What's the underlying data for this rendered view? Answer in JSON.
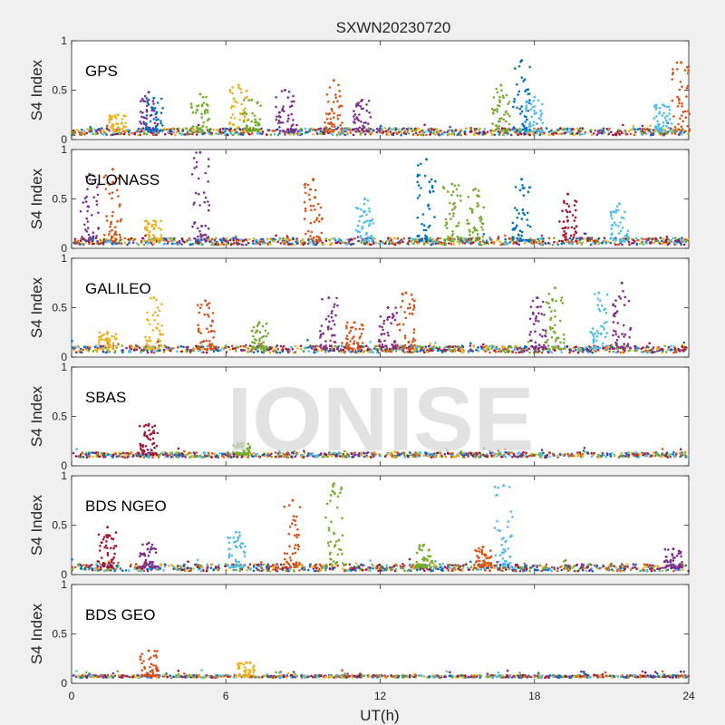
{
  "figure": {
    "title": "SXWN20230720",
    "watermark": "IONISE",
    "xlabel": "UT(h)",
    "ylabel": "S4 Index",
    "background": "#f0f0f0",
    "axes_background": "#ffffff"
  },
  "chart_data": [
    {
      "type": "scatter",
      "label": "GPS",
      "xlim": [
        0,
        24
      ],
      "ylim": [
        0,
        1
      ],
      "xticks": [
        "0",
        "6",
        "12",
        "18",
        "24"
      ],
      "yticks": [
        "0",
        "0.5",
        "1"
      ],
      "baseline": 0.08,
      "noise": 0.035,
      "bursts": [
        {
          "t": 1.8,
          "peak": 0.25,
          "color": "#EDB120"
        },
        {
          "t": 3.0,
          "peak": 0.48,
          "color": "#7E2F8E"
        },
        {
          "t": 3.2,
          "peak": 0.42,
          "color": "#0072BD"
        },
        {
          "t": 5.0,
          "peak": 0.46,
          "color": "#77AC30"
        },
        {
          "t": 6.5,
          "peak": 0.55,
          "color": "#EDB120"
        },
        {
          "t": 7.0,
          "peak": 0.4,
          "color": "#77AC30"
        },
        {
          "t": 8.3,
          "peak": 0.5,
          "color": "#7E2F8E"
        },
        {
          "t": 10.2,
          "peak": 0.6,
          "color": "#D95319"
        },
        {
          "t": 11.3,
          "peak": 0.4,
          "color": "#7E2F8E"
        },
        {
          "t": 16.7,
          "peak": 0.55,
          "color": "#77AC30"
        },
        {
          "t": 17.5,
          "peak": 0.8,
          "color": "#0072BD"
        },
        {
          "t": 18.0,
          "peak": 0.43,
          "color": "#4DBEEE"
        },
        {
          "t": 23.0,
          "peak": 0.35,
          "color": "#4DBEEE"
        },
        {
          "t": 23.7,
          "peak": 0.78,
          "color": "#D95319"
        }
      ]
    },
    {
      "type": "scatter",
      "label": "GLONASS",
      "xlim": [
        0,
        24
      ],
      "ylim": [
        0,
        1
      ],
      "xticks": [
        "0",
        "6",
        "12",
        "18",
        "24"
      ],
      "yticks": [
        "0",
        "0.5",
        "1"
      ],
      "baseline": 0.07,
      "noise": 0.035,
      "bursts": [
        {
          "t": 0.7,
          "peak": 0.75,
          "color": "#7E2F8E"
        },
        {
          "t": 1.6,
          "peak": 0.8,
          "color": "#D95319"
        },
        {
          "t": 3.2,
          "peak": 0.28,
          "color": "#EDB120"
        },
        {
          "t": 5.0,
          "peak": 0.97,
          "color": "#7E2F8E"
        },
        {
          "t": 9.4,
          "peak": 0.7,
          "color": "#D95319"
        },
        {
          "t": 11.4,
          "peak": 0.5,
          "color": "#4DBEEE"
        },
        {
          "t": 13.8,
          "peak": 0.9,
          "color": "#0072BD"
        },
        {
          "t": 14.8,
          "peak": 0.65,
          "color": "#77AC30"
        },
        {
          "t": 15.7,
          "peak": 0.6,
          "color": "#77AC30"
        },
        {
          "t": 17.5,
          "peak": 0.7,
          "color": "#0072BD"
        },
        {
          "t": 19.3,
          "peak": 0.55,
          "color": "#A2142F"
        },
        {
          "t": 21.3,
          "peak": 0.45,
          "color": "#4DBEEE"
        }
      ]
    },
    {
      "type": "scatter",
      "label": "GALILEO",
      "xlim": [
        0,
        24
      ],
      "ylim": [
        0,
        1
      ],
      "xticks": [
        "0",
        "6",
        "12",
        "18",
        "24"
      ],
      "yticks": [
        "0",
        "0.5",
        "1"
      ],
      "baseline": 0.08,
      "noise": 0.035,
      "bursts": [
        {
          "t": 1.4,
          "peak": 0.25,
          "color": "#EDB120"
        },
        {
          "t": 3.2,
          "peak": 0.6,
          "color": "#EDB120"
        },
        {
          "t": 5.2,
          "peak": 0.57,
          "color": "#D95319"
        },
        {
          "t": 7.3,
          "peak": 0.35,
          "color": "#77AC30"
        },
        {
          "t": 10.0,
          "peak": 0.6,
          "color": "#7E2F8E"
        },
        {
          "t": 11.0,
          "peak": 0.35,
          "color": "#D95319"
        },
        {
          "t": 12.3,
          "peak": 0.5,
          "color": "#7E2F8E"
        },
        {
          "t": 13.0,
          "peak": 0.65,
          "color": "#D95319"
        },
        {
          "t": 18.1,
          "peak": 0.6,
          "color": "#7E2F8E"
        },
        {
          "t": 18.8,
          "peak": 0.7,
          "color": "#77AC30"
        },
        {
          "t": 20.5,
          "peak": 0.65,
          "color": "#4DBEEE"
        },
        {
          "t": 21.4,
          "peak": 0.75,
          "color": "#7E2F8E"
        }
      ]
    },
    {
      "type": "scatter",
      "label": "SBAS",
      "xlim": [
        0,
        24
      ],
      "ylim": [
        0,
        1
      ],
      "xticks": [
        "0",
        "6",
        "12",
        "18",
        "24"
      ],
      "yticks": [
        "0",
        "0.5",
        "1"
      ],
      "baseline": 0.11,
      "noise": 0.025,
      "bursts": [
        {
          "t": 3.0,
          "peak": 0.42,
          "color": "#A2142F"
        },
        {
          "t": 6.6,
          "peak": 0.23,
          "color": "#77AC30"
        }
      ]
    },
    {
      "type": "scatter",
      "label": "BDS NGEO",
      "xlim": [
        0,
        24
      ],
      "ylim": [
        0,
        1
      ],
      "xticks": [
        "0",
        "6",
        "12",
        "18",
        "24"
      ],
      "yticks": [
        "0",
        "0.5",
        "1"
      ],
      "baseline": 0.07,
      "noise": 0.035,
      "bursts": [
        {
          "t": 1.4,
          "peak": 0.48,
          "color": "#A2142F"
        },
        {
          "t": 3.0,
          "peak": 0.32,
          "color": "#7E2F8E"
        },
        {
          "t": 6.4,
          "peak": 0.43,
          "color": "#4DBEEE"
        },
        {
          "t": 8.6,
          "peak": 0.75,
          "color": "#D95319"
        },
        {
          "t": 10.2,
          "peak": 0.92,
          "color": "#77AC30"
        },
        {
          "t": 13.7,
          "peak": 0.3,
          "color": "#77AC30"
        },
        {
          "t": 16.0,
          "peak": 0.28,
          "color": "#D95319"
        },
        {
          "t": 16.8,
          "peak": 0.9,
          "color": "#4DBEEE"
        },
        {
          "t": 23.4,
          "peak": 0.26,
          "color": "#7E2F8E"
        }
      ]
    },
    {
      "type": "scatter",
      "label": "BDS GEO",
      "xlim": [
        0,
        24
      ],
      "ylim": [
        0,
        1
      ],
      "xticks": [
        "0",
        "6",
        "12",
        "18",
        "24"
      ],
      "yticks": [
        "0",
        "0.5",
        "1"
      ],
      "baseline": 0.07,
      "noise": 0.012,
      "bursts": [
        {
          "t": 3.0,
          "peak": 0.33,
          "color": "#D95319"
        },
        {
          "t": 6.8,
          "peak": 0.21,
          "color": "#EDB120"
        }
      ]
    }
  ],
  "series_colors": [
    "#0072BD",
    "#D95319",
    "#EDB120",
    "#7E2F8E",
    "#77AC30",
    "#4DBEEE",
    "#A2142F"
  ]
}
